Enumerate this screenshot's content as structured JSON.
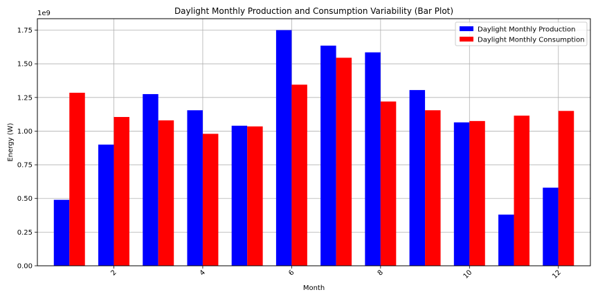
{
  "chart_data": {
    "type": "bar",
    "title": "Daylight Monthly Production and Consumption Variability (Bar Plot)",
    "xlabel": "Month",
    "ylabel": "Energy (W)",
    "y_offset_label": "1e9",
    "categories": [
      1,
      2,
      3,
      4,
      5,
      6,
      7,
      8,
      9,
      10,
      11,
      12
    ],
    "x_ticks": [
      2,
      4,
      6,
      8,
      10,
      12
    ],
    "x_tick_labels": [
      "2",
      "4",
      "6",
      "8",
      "10",
      "12"
    ],
    "xlim": [
      0.28,
      12.72
    ],
    "ylim": [
      0,
      1.835
    ],
    "y_ticks": [
      0.0,
      0.25,
      0.5,
      0.75,
      1.0,
      1.25,
      1.5,
      1.75
    ],
    "y_tick_labels": [
      "0.00",
      "0.25",
      "0.50",
      "0.75",
      "1.00",
      "1.25",
      "1.50",
      "1.75"
    ],
    "bar_width": 0.35,
    "grid": true,
    "legend_position": "top-right",
    "series": [
      {
        "name": "Daylight Monthly Production",
        "color": "#0000ff",
        "values": [
          0.49,
          0.9,
          1.275,
          1.155,
          1.04,
          1.75,
          1.635,
          1.585,
          1.305,
          1.065,
          0.38,
          0.58
        ]
      },
      {
        "name": "Daylight Monthly Consumption",
        "color": "#ff0000",
        "values": [
          1.285,
          1.105,
          1.08,
          0.98,
          1.035,
          1.345,
          1.545,
          1.22,
          1.155,
          1.075,
          1.115,
          1.15
        ]
      }
    ]
  }
}
